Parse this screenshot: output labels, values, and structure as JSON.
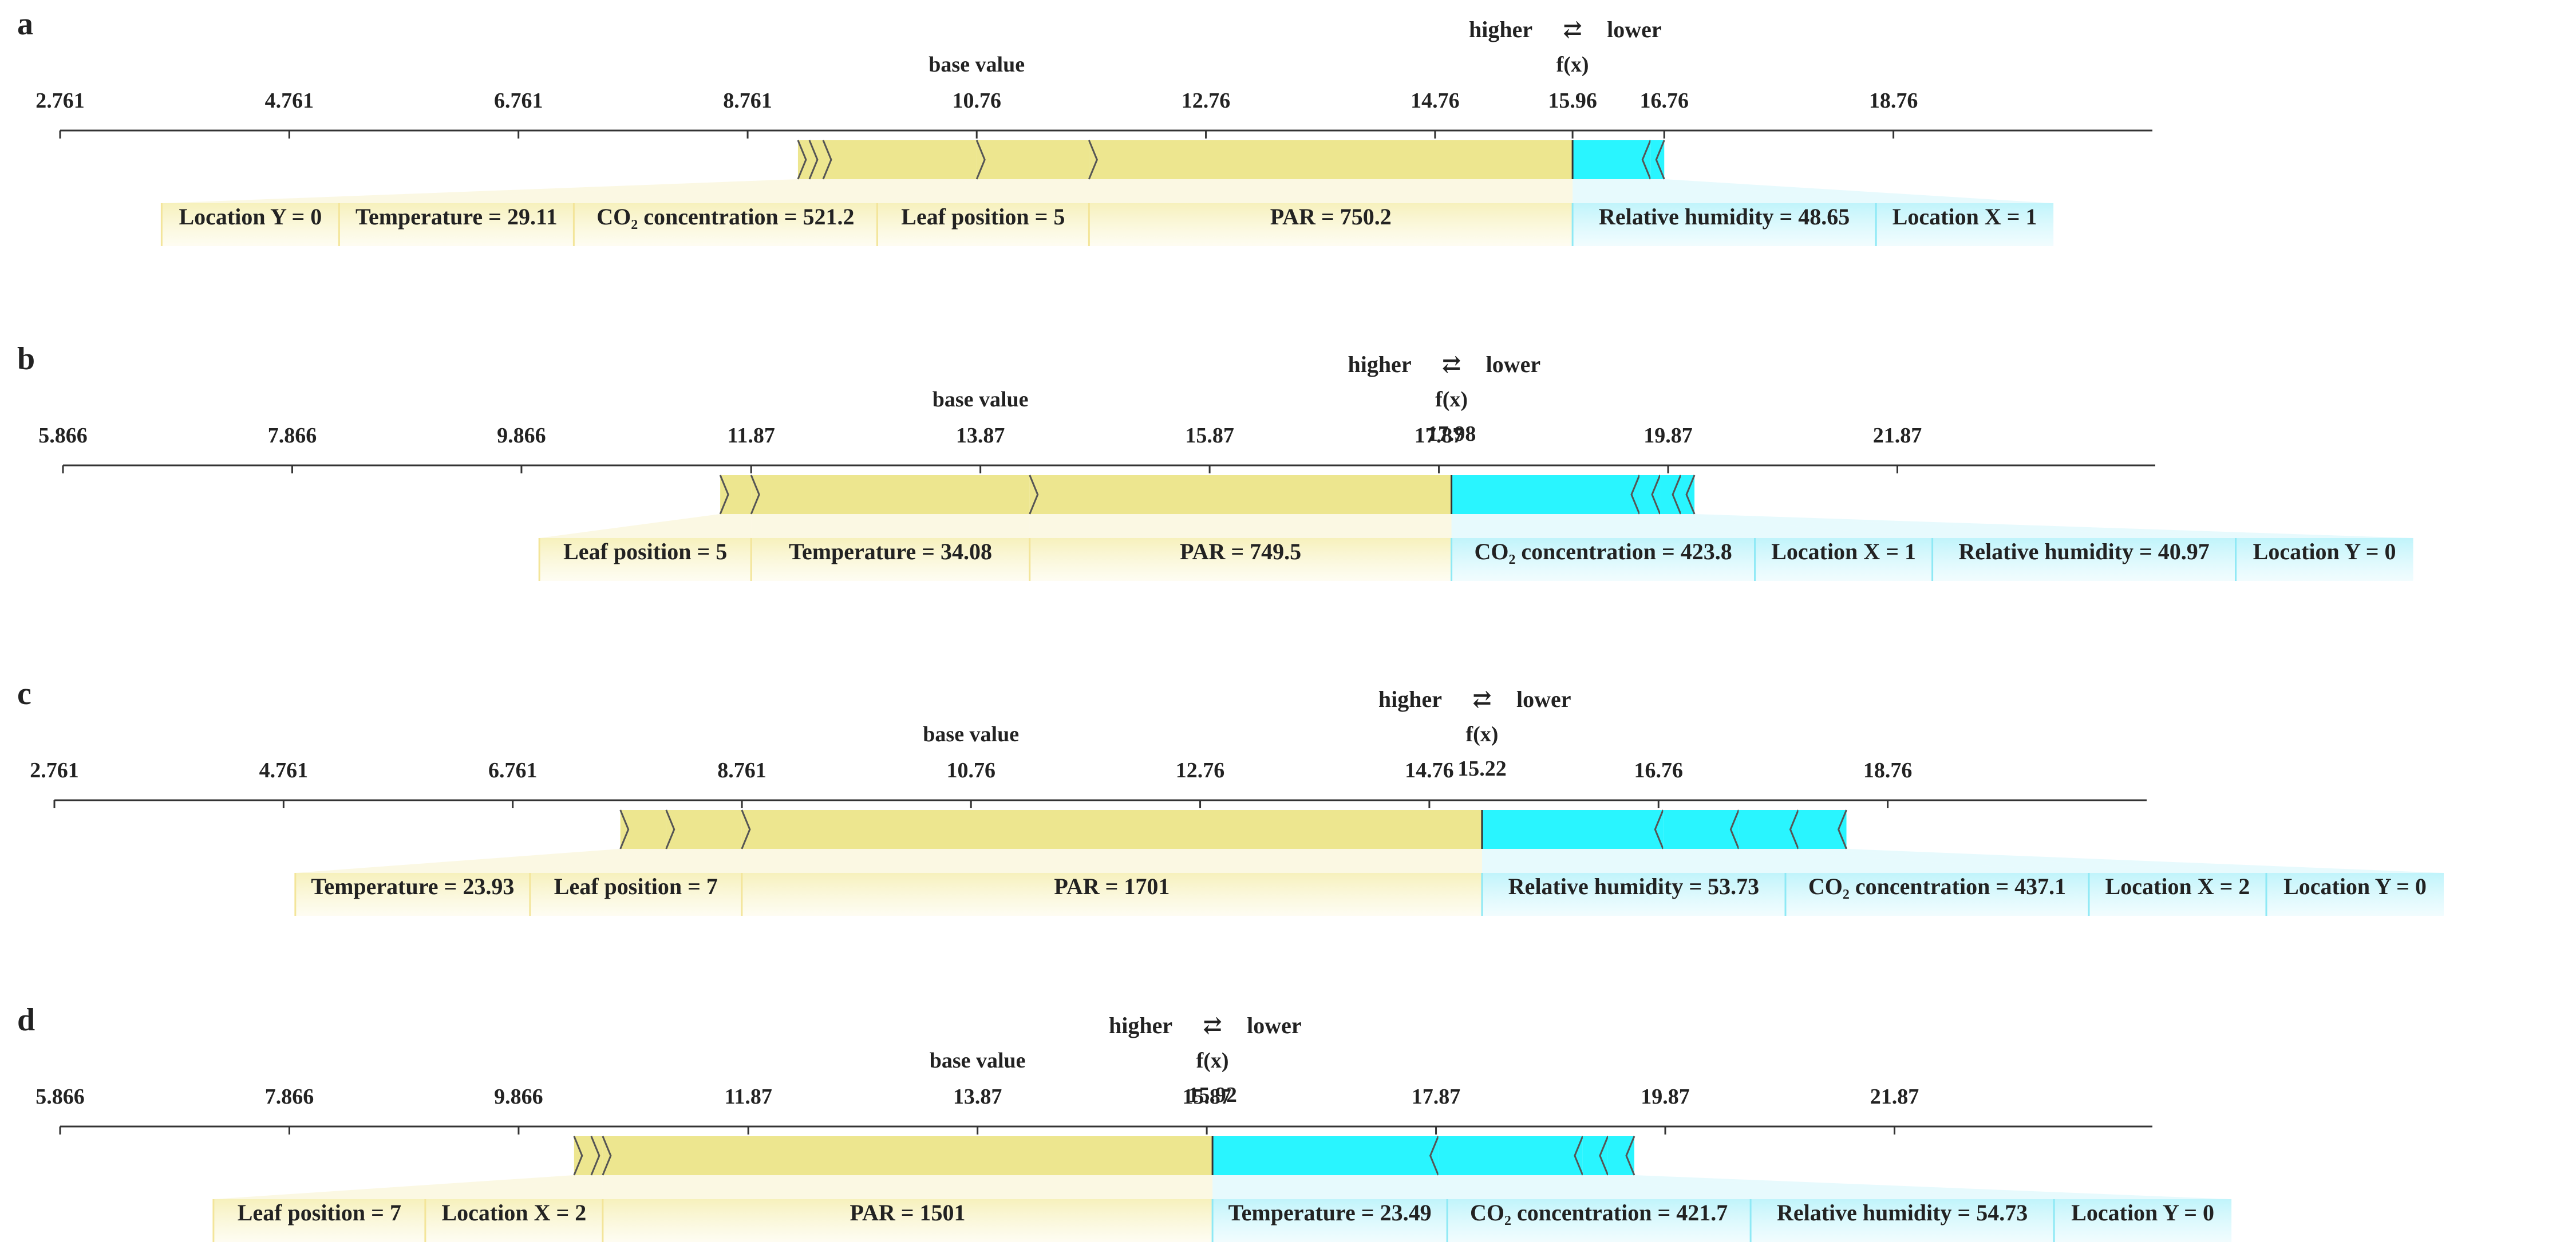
{
  "chart_data": [
    {
      "type": "force",
      "panel": "a",
      "higher_text": "higher",
      "lower_text": "lower",
      "arrows_glyph": "⇄",
      "fx_label": "f(x)",
      "base_value_label": "base value",
      "base_value": 10.76,
      "fx_value": 15.96,
      "fx_value_text": "15.96",
      "ticks": [
        2.761,
        4.761,
        6.761,
        8.761,
        10.76,
        12.76,
        14.76,
        15.96,
        16.76,
        18.76
      ],
      "tick_labels": [
        "2.761",
        "4.761",
        "6.761",
        "8.761",
        "10.76",
        "12.76",
        "14.76",
        "15.96",
        "16.76",
        "18.76"
      ],
      "positive": [
        {
          "label": "Location Y = 0",
          "from": 9.2,
          "to": 9.3
        },
        {
          "label": "Temperature = 29.11",
          "from": 9.3,
          "to": 9.42
        },
        {
          "label": "CO₂ concentration = 521.2",
          "from": 9.42,
          "to": 10.76
        },
        {
          "label": "Leaf position = 5",
          "from": 10.76,
          "to": 11.74
        },
        {
          "label": "PAR = 750.2",
          "from": 11.74,
          "to": 15.96
        }
      ],
      "negative": [
        {
          "label": "Relative humidity = 48.65",
          "from": 15.96,
          "to": 16.64
        },
        {
          "label": "Location X = 1",
          "from": 16.64,
          "to": 16.76
        }
      ]
    },
    {
      "type": "force",
      "panel": "b",
      "higher_text": "higher",
      "lower_text": "lower",
      "arrows_glyph": "⇄",
      "fx_label": "f(x)",
      "base_value_label": "base value",
      "base_value": 13.87,
      "fx_value": 17.98,
      "fx_value_text": "17.98",
      "ticks": [
        5.866,
        7.866,
        9.866,
        11.87,
        13.87,
        15.87,
        17.87,
        19.87,
        21.87
      ],
      "tick_labels": [
        "5.866",
        "7.866",
        "9.866",
        "11.87",
        "13.87",
        "15.87",
        "17.87",
        "19.87",
        "21.87"
      ],
      "positive": [
        {
          "label": "Leaf position = 5",
          "from": 11.6,
          "to": 11.87
        },
        {
          "label": "Temperature = 34.08",
          "from": 11.87,
          "to": 14.3
        },
        {
          "label": "PAR = 749.5",
          "from": 14.3,
          "to": 17.98
        }
      ],
      "negative": [
        {
          "label": "CO₂ concentration = 423.8",
          "from": 17.98,
          "to": 19.62
        },
        {
          "label": "Location X = 1",
          "from": 19.62,
          "to": 19.8
        },
        {
          "label": "Relative humidity = 40.97",
          "from": 19.8,
          "to": 19.98
        },
        {
          "label": "Location Y = 0",
          "from": 19.98,
          "to": 20.1
        }
      ]
    },
    {
      "type": "force",
      "panel": "c",
      "higher_text": "higher",
      "lower_text": "lower",
      "arrows_glyph": "⇄",
      "fx_label": "f(x)",
      "base_value_label": "base value",
      "base_value": 10.76,
      "fx_value": 15.22,
      "fx_value_text": "15.22",
      "ticks": [
        2.761,
        4.761,
        6.761,
        8.761,
        10.76,
        12.76,
        14.76,
        16.76,
        18.76
      ],
      "tick_labels": [
        "2.761",
        "4.761",
        "6.761",
        "8.761",
        "10.76",
        "12.76",
        "14.76",
        "16.76",
        "18.76"
      ],
      "positive": [
        {
          "label": "Temperature = 23.93",
          "from": 7.7,
          "to": 8.1
        },
        {
          "label": "Leaf position = 7",
          "from": 8.1,
          "to": 8.76
        },
        {
          "label": "PAR = 1701",
          "from": 8.76,
          "to": 15.22
        }
      ],
      "negative": [
        {
          "label": "Relative humidity = 53.73",
          "from": 15.22,
          "to": 16.8
        },
        {
          "label": "CO₂ concentration = 437.1",
          "from": 16.8,
          "to": 17.46
        },
        {
          "label": "Location X = 2",
          "from": 17.46,
          "to": 17.98
        },
        {
          "label": "Location Y = 0",
          "from": 17.98,
          "to": 18.4
        }
      ]
    },
    {
      "type": "force",
      "panel": "d",
      "higher_text": "higher",
      "lower_text": "lower",
      "arrows_glyph": "⇄",
      "fx_label": "f(x)",
      "base_value_label": "base value",
      "base_value": 13.87,
      "fx_value": 15.92,
      "fx_value_text": "15.92",
      "ticks": [
        5.866,
        7.866,
        9.866,
        11.87,
        13.87,
        15.87,
        17.87,
        19.87,
        21.87
      ],
      "tick_labels": [
        "5.866",
        "7.866",
        "9.866",
        "11.87",
        "13.87",
        "15.87",
        "17.87",
        "19.87",
        "21.87"
      ],
      "positive": [
        {
          "label": "Leaf position = 7",
          "from": 10.35,
          "to": 10.5
        },
        {
          "label": "Location X = 2",
          "from": 10.5,
          "to": 10.6
        },
        {
          "label": "PAR = 1501",
          "from": 10.6,
          "to": 15.92
        }
      ],
      "negative": [
        {
          "label": "Temperature = 23.49",
          "from": 15.92,
          "to": 17.89
        },
        {
          "label": "CO₂ concentration = 421.7",
          "from": 17.89,
          "to": 19.15
        },
        {
          "label": "Relative humidity = 54.73",
          "from": 19.15,
          "to": 19.37
        },
        {
          "label": "Location Y = 0",
          "from": 19.37,
          "to": 19.6
        }
      ]
    }
  ]
}
